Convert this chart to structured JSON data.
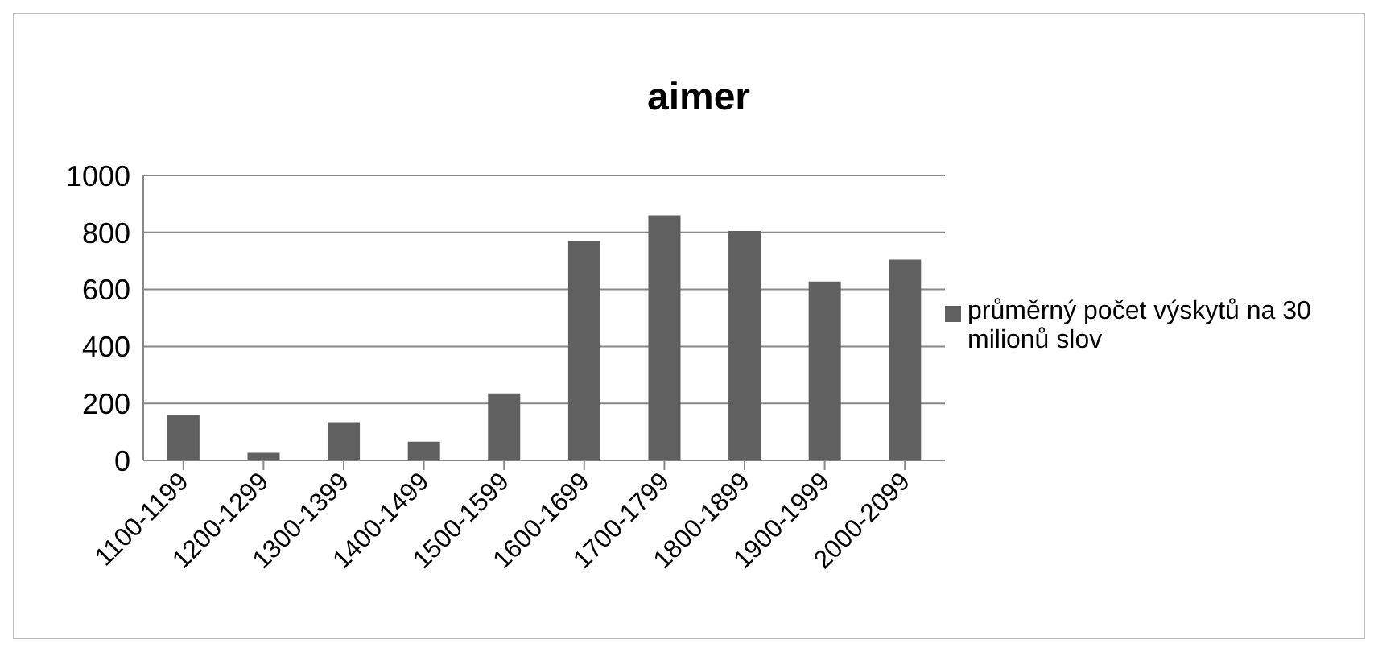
{
  "chart_data": {
    "type": "bar",
    "title": "aimer",
    "categories": [
      "1100-1199",
      "1200-1299",
      "1300-1399",
      "1400-1499",
      "1500-1599",
      "1600-1699",
      "1700-1799",
      "1800-1899",
      "1900-1999",
      "2000-2099"
    ],
    "series": [
      {
        "name": "průměrný počet výskytů na 30 milionů slov",
        "color": "#606060",
        "values": [
          161,
          27,
          134,
          66,
          235,
          770,
          860,
          805,
          628,
          705
        ]
      }
    ],
    "ylim": [
      0,
      1000
    ],
    "yticks": [
      0,
      200,
      400,
      600,
      800,
      1000
    ],
    "grid": "y",
    "legend": "right"
  }
}
